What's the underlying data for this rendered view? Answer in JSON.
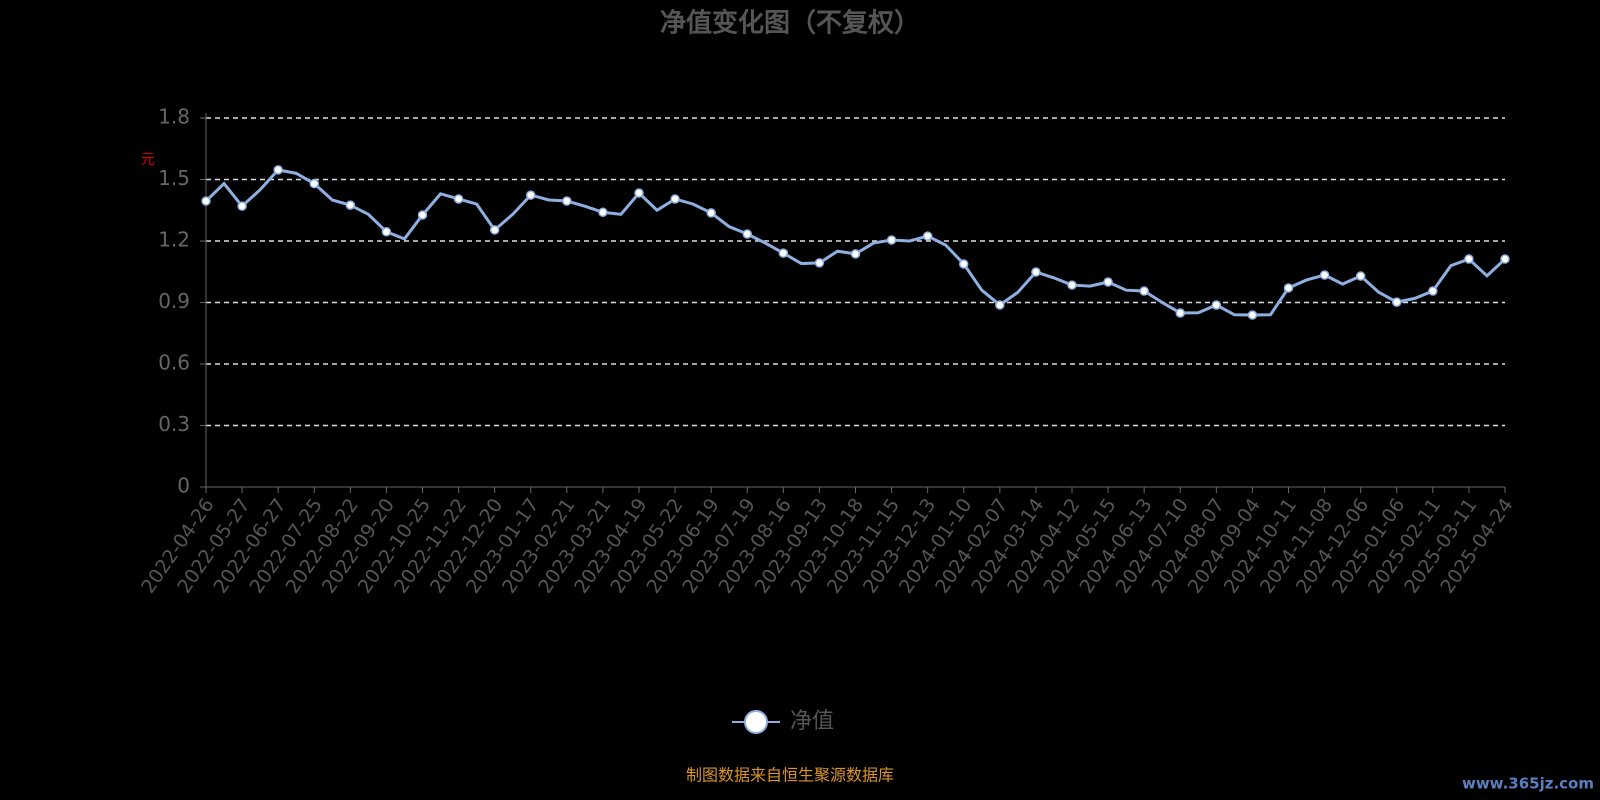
{
  "chart_data": {
    "type": "line",
    "title": "净值变化图（不复权）",
    "y_label": "元",
    "categories": [
      "2022-04-26",
      null,
      "2022-05-27",
      null,
      "2022-06-27",
      null,
      "2022-07-25",
      null,
      "2022-08-22",
      null,
      "2022-09-20",
      null,
      "2022-10-25",
      null,
      "2022-11-22",
      null,
      "2022-12-20",
      null,
      "2023-01-17",
      null,
      "2023-02-21",
      null,
      "2023-03-21",
      null,
      "2023-04-19",
      null,
      "2023-05-22",
      null,
      "2023-06-19",
      null,
      "2023-07-19",
      null,
      "2023-08-16",
      null,
      "2023-09-13",
      null,
      "2023-10-18",
      null,
      "2023-11-15",
      null,
      "2023-12-13",
      null,
      "2024-01-10",
      null,
      "2024-02-07",
      null,
      "2024-03-14",
      null,
      "2024-04-12",
      null,
      "2024-05-15",
      null,
      "2024-06-13",
      null,
      "2024-07-10",
      null,
      "2024-08-07",
      null,
      "2024-09-04",
      null,
      "2024-10-11",
      null,
      "2024-11-08",
      null,
      "2024-12-06",
      null,
      "2025-01-06",
      null,
      "2025-02-11",
      null,
      "2025-03-11",
      null,
      "2025-04-24"
    ],
    "series": [
      {
        "name": "净值",
        "color": "#8eb0e0",
        "values": [
          1.395,
          1.48,
          1.37,
          1.45,
          1.547,
          1.53,
          1.48,
          1.4,
          1.375,
          1.33,
          1.245,
          1.21,
          1.327,
          1.43,
          1.405,
          1.38,
          1.254,
          1.33,
          1.424,
          1.4,
          1.395,
          1.37,
          1.34,
          1.33,
          1.434,
          1.35,
          1.405,
          1.38,
          1.337,
          1.27,
          1.234,
          1.19,
          1.141,
          1.09,
          1.093,
          1.15,
          1.137,
          1.19,
          1.205,
          1.2,
          1.224,
          1.18,
          1.088,
          0.96,
          0.888,
          0.95,
          1.049,
          1.02,
          0.985,
          0.98,
          1.0,
          0.96,
          0.956,
          0.9,
          0.849,
          0.85,
          0.888,
          0.84,
          0.839,
          0.84,
          0.971,
          1.01,
          1.034,
          0.99,
          1.029,
          0.95,
          0.902,
          0.92,
          0.956,
          1.08,
          1.112,
          1.03,
          1.112
        ]
      }
    ],
    "ylim": [
      0,
      1.8
    ],
    "yticks": [
      0,
      0.3,
      0.6,
      0.9,
      1.2,
      1.5,
      1.8
    ],
    "grid": true,
    "source": "制图数据来自恒生聚源数据库",
    "watermark": "www.365jz.com"
  }
}
